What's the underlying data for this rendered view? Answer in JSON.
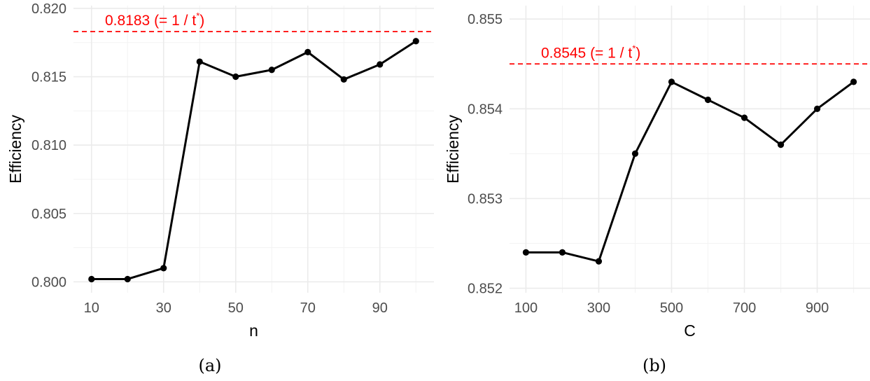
{
  "chart_data": [
    {
      "type": "line",
      "panel_label": "(a)",
      "xlabel": "n",
      "ylabel": "Efficiency",
      "x": [
        10,
        20,
        30,
        40,
        50,
        60,
        70,
        80,
        90,
        100
      ],
      "series": [
        {
          "values": [
            0.8002,
            0.8002,
            0.801,
            0.8161,
            0.815,
            0.8155,
            0.8168,
            0.8148,
            0.8159,
            0.8176
          ]
        }
      ],
      "xlim": [
        5,
        105
      ],
      "ylim": [
        0.7992,
        0.8202
      ],
      "xticks": [
        10,
        30,
        50,
        70,
        90
      ],
      "xtick_labels": [
        "10",
        "30",
        "50",
        "70",
        "90"
      ],
      "yticks": [
        0.8,
        0.805,
        0.81,
        0.815,
        0.82
      ],
      "ytick_labels": [
        "0.800",
        "0.805",
        "0.810",
        "0.815",
        "0.820"
      ],
      "reference_line": {
        "value": 0.8183,
        "label_main": "0.8183 (= 1 / t",
        "label_sup": "*",
        "label_end": ")",
        "color": "#ff0000"
      },
      "grid": true,
      "line_color": "#000000"
    },
    {
      "type": "line",
      "panel_label": "(b)",
      "xlabel": "C",
      "ylabel": "Efficiency",
      "x": [
        100,
        200,
        300,
        400,
        500,
        600,
        700,
        800,
        900,
        1000
      ],
      "series": [
        {
          "values": [
            0.8524,
            0.8524,
            0.8523,
            0.8535,
            0.8543,
            0.8541,
            0.8539,
            0.8536,
            0.854,
            0.8543
          ]
        }
      ],
      "xlim": [
        55,
        1045
      ],
      "ylim": [
        0.85195,
        0.85515
      ],
      "xticks": [
        100,
        300,
        500,
        700,
        900
      ],
      "xtick_labels": [
        "100",
        "300",
        "500",
        "700",
        "900"
      ],
      "yticks": [
        0.852,
        0.853,
        0.854,
        0.855
      ],
      "ytick_labels": [
        "0.852",
        "0.853",
        "0.854",
        "0.855"
      ],
      "reference_line": {
        "value": 0.8545,
        "label_main": "0.8545 (= 1 / t",
        "label_sup": "*",
        "label_end": ")",
        "color": "#ff0000"
      },
      "grid": true,
      "line_color": "#000000"
    }
  ]
}
